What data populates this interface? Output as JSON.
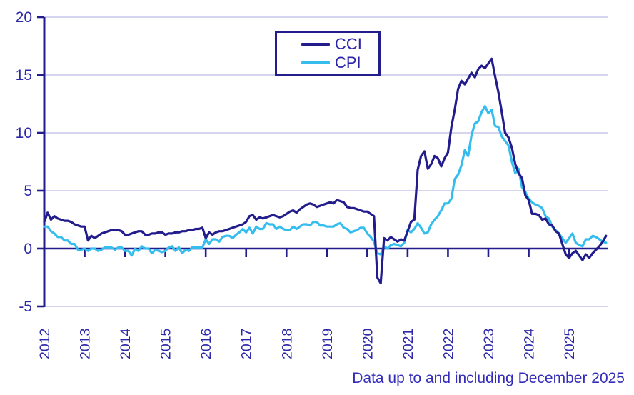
{
  "chart_data": {
    "type": "line",
    "title": "",
    "x_unit": "month",
    "x_start": "2012-01",
    "x_end": "2025-12",
    "year_ticks": [
      2012,
      2013,
      2014,
      2015,
      2016,
      2017,
      2018,
      2019,
      2020,
      2021,
      2022,
      2023,
      2024,
      2025
    ],
    "ylim": [
      -5,
      20
    ],
    "yticks": [
      -5,
      0,
      5,
      10,
      15,
      20
    ],
    "grid": "horizontal",
    "legend_position": "top-center",
    "note": "Data up to and including December 2025",
    "colors": {
      "cci": "#221c8c",
      "cpi": "#35bdee",
      "axis": "#221c8c",
      "grid": "#c9c7ec",
      "tick_text": "#2d28a8",
      "note_text": "#332db8"
    },
    "series": [
      {
        "name": "CCI",
        "color": "#221c8c",
        "values": [
          2.3,
          3.1,
          2.5,
          2.8,
          2.6,
          2.5,
          2.4,
          2.4,
          2.3,
          2.1,
          2.0,
          1.9,
          1.9,
          0.7,
          1.1,
          0.9,
          1.1,
          1.3,
          1.4,
          1.5,
          1.6,
          1.6,
          1.6,
          1.5,
          1.2,
          1.2,
          1.3,
          1.4,
          1.5,
          1.5,
          1.2,
          1.2,
          1.3,
          1.3,
          1.4,
          1.4,
          1.2,
          1.3,
          1.3,
          1.4,
          1.4,
          1.5,
          1.5,
          1.6,
          1.6,
          1.7,
          1.7,
          1.8,
          0.9,
          1.4,
          1.2,
          1.4,
          1.5,
          1.5,
          1.6,
          1.7,
          1.8,
          1.9,
          2.0,
          2.1,
          2.3,
          2.8,
          2.9,
          2.5,
          2.7,
          2.6,
          2.7,
          2.8,
          2.9,
          2.8,
          2.7,
          2.8,
          3.0,
          3.2,
          3.3,
          3.1,
          3.4,
          3.6,
          3.8,
          3.9,
          3.8,
          3.6,
          3.7,
          3.8,
          3.9,
          4.0,
          3.9,
          4.2,
          4.1,
          4.0,
          3.6,
          3.5,
          3.5,
          3.4,
          3.3,
          3.2,
          3.2,
          3.0,
          2.8,
          -2.5,
          -3.0,
          0.9,
          0.7,
          1.0,
          0.8,
          0.6,
          0.8,
          0.7,
          1.5,
          2.3,
          2.5,
          6.8,
          8.0,
          8.4,
          6.9,
          7.3,
          8.0,
          7.8,
          7.1,
          7.8,
          8.3,
          10.5,
          12.0,
          13.8,
          14.5,
          14.2,
          14.7,
          15.2,
          14.8,
          15.5,
          15.8,
          15.6,
          16.0,
          16.4,
          14.9,
          13.5,
          11.8,
          10.0,
          9.6,
          8.7,
          7.3,
          6.5,
          6.1,
          4.6,
          4.2,
          3.0,
          3.0,
          2.9,
          2.5,
          2.6,
          2.1,
          2.0,
          1.5,
          1.3,
          0.4,
          -0.5,
          -0.8,
          -0.4,
          -0.2,
          -0.6,
          -1.0,
          -0.5,
          -0.8,
          -0.4,
          -0.1,
          0.2,
          0.6,
          1.1
        ]
      },
      {
        "name": "CPI",
        "color": "#35bdee",
        "values": [
          1.9,
          1.9,
          1.5,
          1.3,
          1.0,
          1.0,
          0.7,
          0.7,
          0.4,
          0.4,
          -0.1,
          -0.1,
          0.0,
          -0.2,
          0.0,
          0.0,
          -0.2,
          -0.1,
          0.1,
          0.1,
          0.1,
          -0.1,
          0.1,
          0.1,
          -0.2,
          -0.2,
          -0.6,
          0.0,
          -0.2,
          0.2,
          0.0,
          0.0,
          -0.4,
          -0.1,
          -0.2,
          -0.3,
          -0.2,
          0.1,
          0.2,
          -0.2,
          0.1,
          -0.4,
          -0.1,
          -0.2,
          0.1,
          0.1,
          0.1,
          0.1,
          0.8,
          0.4,
          0.8,
          0.8,
          0.6,
          1.0,
          1.1,
          1.1,
          0.9,
          1.2,
          1.4,
          1.7,
          1.4,
          1.8,
          1.3,
          1.9,
          1.7,
          1.7,
          2.2,
          2.1,
          2.1,
          1.7,
          1.9,
          1.7,
          1.6,
          1.6,
          1.9,
          1.7,
          1.9,
          2.1,
          2.1,
          2.0,
          2.3,
          2.3,
          2.0,
          2.0,
          1.9,
          1.9,
          1.9,
          2.1,
          2.2,
          1.8,
          1.7,
          1.4,
          1.5,
          1.6,
          1.8,
          1.8,
          1.3,
          1.0,
          0.6,
          -0.4,
          -0.5,
          0.2,
          0.0,
          0.3,
          0.4,
          0.3,
          0.2,
          0.5,
          1.6,
          1.4,
          1.7,
          2.2,
          1.8,
          1.3,
          1.4,
          2.1,
          2.5,
          2.8,
          3.3,
          3.9,
          3.9,
          4.3,
          6.0,
          6.4,
          7.2,
          8.5,
          8.0,
          9.8,
          10.8,
          11.0,
          11.8,
          12.3,
          11.7,
          12.0,
          10.6,
          10.5,
          9.7,
          9.3,
          8.9,
          7.5,
          6.5,
          6.9,
          5.3,
          4.9,
          4.3,
          4.0,
          3.8,
          3.7,
          3.5,
          2.8,
          2.6,
          1.9,
          1.6,
          1.3,
          0.9,
          0.5,
          0.9,
          1.3,
          0.5,
          0.3,
          0.2,
          0.8,
          0.8,
          1.1,
          1.0,
          0.8,
          0.6,
          0.5
        ]
      }
    ]
  }
}
